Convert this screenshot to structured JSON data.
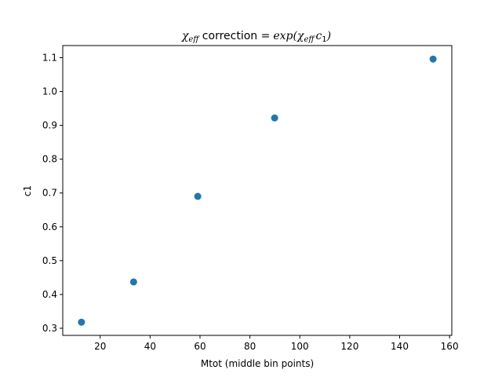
{
  "chart_data": {
    "type": "scatter",
    "title": {
      "chi": "χ",
      "eff": "eff",
      "mid": " correction ",
      "eq": "=",
      "exp": "exp(",
      "chi2": "χ",
      "eff2": "eff",
      "c": "c",
      "one": "1",
      "close": ")"
    },
    "xlabel": "Mtot (middle bin points)",
    "ylabel": "c1",
    "xlim": [
      5.0,
      160.9
    ],
    "ylim": [
      0.279,
      1.136
    ],
    "xticks": [
      20,
      40,
      60,
      80,
      100,
      120,
      140,
      160
    ],
    "yticks": [
      0.3,
      0.4,
      0.5,
      0.6,
      0.7,
      0.8,
      0.9,
      1.0,
      1.1
    ],
    "ytick_labels": [
      "0.3",
      "0.4",
      "0.5",
      "0.6",
      "0.7",
      "0.8",
      "0.9",
      "1.0",
      "1.1"
    ],
    "x": [
      12.5,
      33.4,
      59.1,
      89.9,
      153.4
    ],
    "y": [
      0.318,
      0.437,
      0.69,
      0.922,
      1.096
    ],
    "marker_color": "#1f77b4",
    "grid": false,
    "legend": false
  }
}
